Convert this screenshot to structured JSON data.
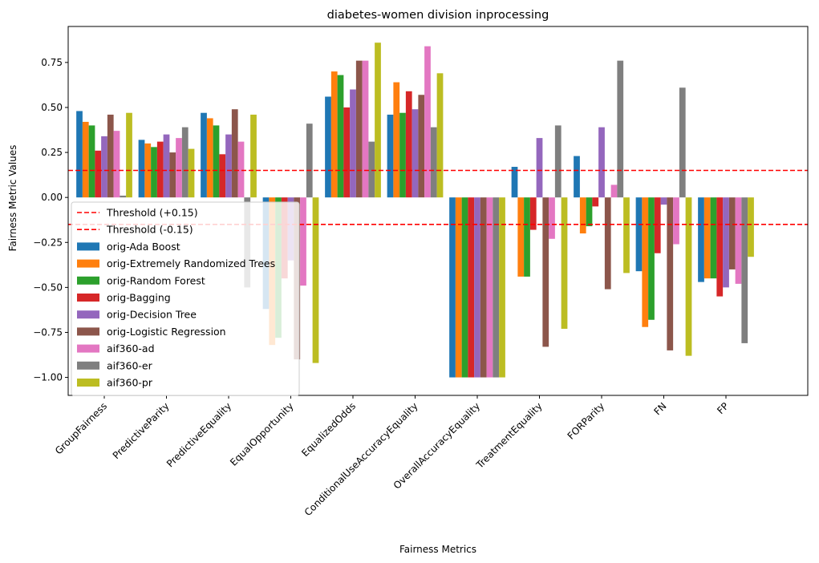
{
  "chart_data": {
    "type": "bar",
    "title": "diabetes-women division inprocessing",
    "xlabel": "Fairness Metrics",
    "ylabel": "Fairness Metric Values",
    "ylim": [
      -1.1,
      0.95
    ],
    "yticks": [
      -1.0,
      -0.75,
      -0.5,
      -0.25,
      0.0,
      0.25,
      0.5,
      0.75
    ],
    "ytick_labels": [
      "−1.00",
      "−0.75",
      "−0.50",
      "−0.25",
      "0.00",
      "0.25",
      "0.50",
      "0.75"
    ],
    "grid": false,
    "legend_position": "left",
    "categories": [
      "GroupFairness",
      "PredictiveParity",
      "PredictiveEquality",
      "EqualOpportunity",
      "EqualizedOdds",
      "ConditionalUseAccuracyEquality",
      "OverallAccuracyEquality",
      "TreatmentEquality",
      "FORParity",
      "FN",
      "FP"
    ],
    "thresholds": [
      {
        "name": "Threshold (+0.15)",
        "value": 0.15,
        "color": "#ff0000"
      },
      {
        "name": "Threshold (-0.15)",
        "value": -0.15,
        "color": "#ff0000"
      }
    ],
    "series": [
      {
        "name": "orig-Ada Boost",
        "color": "#1f77b4",
        "values": [
          0.48,
          0.32,
          0.47,
          -0.62,
          0.56,
          0.46,
          -1.0,
          0.17,
          0.23,
          -0.41,
          -0.47
        ]
      },
      {
        "name": "orig-Extremely Randomized Trees",
        "color": "#ff7f0e",
        "values": [
          0.42,
          0.3,
          0.44,
          -0.82,
          0.7,
          0.64,
          -1.0,
          -0.44,
          -0.2,
          -0.72,
          -0.45
        ]
      },
      {
        "name": "orig-Random Forest",
        "color": "#2ca02c",
        "values": [
          0.4,
          0.28,
          0.4,
          -0.78,
          0.68,
          0.47,
          -1.0,
          -0.44,
          -0.16,
          -0.68,
          -0.45
        ]
      },
      {
        "name": "orig-Bagging",
        "color": "#d62728",
        "values": [
          0.26,
          0.31,
          0.24,
          -0.45,
          0.5,
          0.59,
          -1.0,
          -0.18,
          -0.05,
          -0.31,
          -0.55
        ]
      },
      {
        "name": "orig-Decision Tree",
        "color": "#9467bd",
        "values": [
          0.34,
          0.35,
          0.35,
          -0.35,
          0.6,
          0.49,
          -1.0,
          0.33,
          0.39,
          -0.04,
          -0.5
        ]
      },
      {
        "name": "orig-Logistic Regression",
        "color": "#8c564b",
        "values": [
          0.46,
          0.25,
          0.49,
          -0.9,
          0.76,
          0.57,
          -1.0,
          -0.83,
          -0.51,
          -0.85,
          -0.4
        ]
      },
      {
        "name": "aif360-ad",
        "color": "#e377c2",
        "values": [
          0.37,
          0.33,
          0.31,
          -0.49,
          0.76,
          0.84,
          -1.0,
          -0.23,
          0.07,
          -0.26,
          -0.48
        ]
      },
      {
        "name": "aif360-er",
        "color": "#7f7f7f",
        "values": [
          0.01,
          0.39,
          -0.5,
          0.41,
          0.31,
          0.39,
          -1.0,
          0.4,
          0.76,
          0.61,
          -0.81
        ]
      },
      {
        "name": "aif360-pr",
        "color": "#bcbd22",
        "values": [
          0.47,
          0.27,
          0.46,
          -0.92,
          0.86,
          0.69,
          -1.0,
          -0.73,
          -0.42,
          -0.88,
          -0.33
        ]
      }
    ]
  }
}
